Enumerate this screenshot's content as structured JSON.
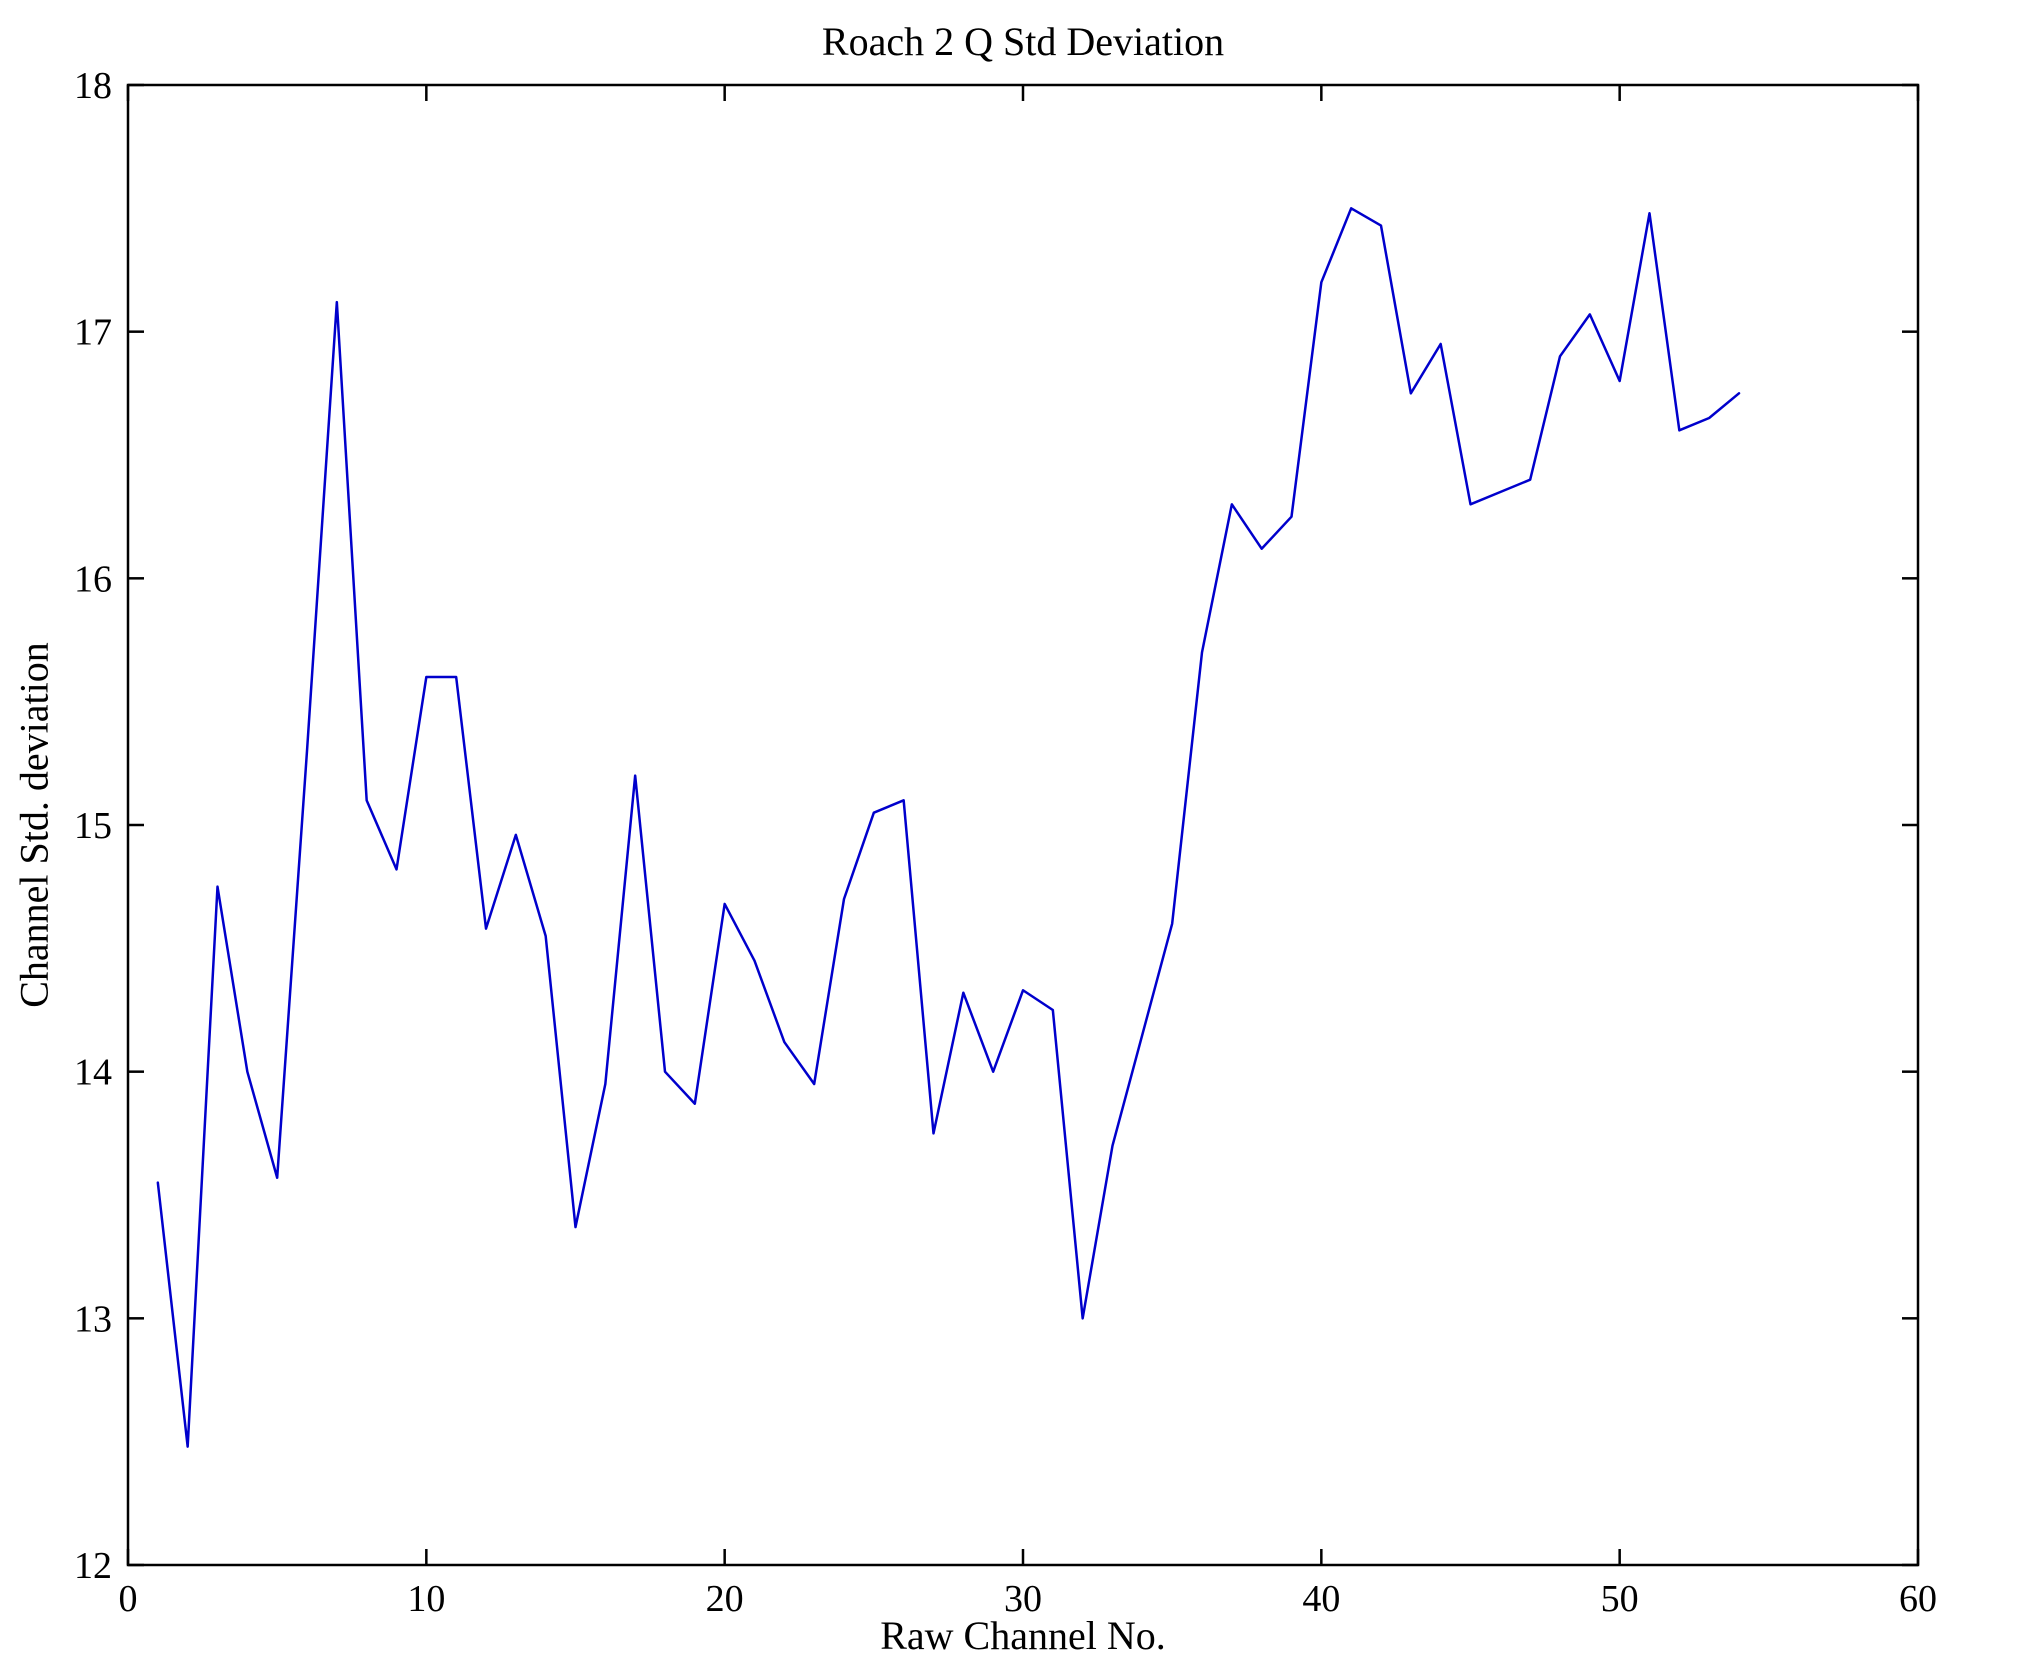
{
  "chart_data": {
    "type": "line",
    "title": "Roach 2 Q Std Deviation",
    "xlabel": "Raw Channel No.",
    "ylabel": "Channel Std. deviation",
    "xlim": [
      0,
      60
    ],
    "ylim": [
      12,
      18
    ],
    "xticks": [
      0,
      10,
      20,
      30,
      40,
      50,
      60
    ],
    "yticks": [
      12,
      13,
      14,
      15,
      16,
      17,
      18
    ],
    "grid": false,
    "legend": null,
    "line_color": "#0000cc",
    "axis_color": "#000000",
    "x": [
      1,
      2,
      3,
      4,
      5,
      6,
      7,
      8,
      9,
      10,
      11,
      12,
      13,
      14,
      15,
      16,
      17,
      18,
      19,
      20,
      21,
      22,
      23,
      24,
      25,
      26,
      27,
      28,
      29,
      30,
      31,
      32,
      33,
      34,
      35,
      36,
      37,
      38,
      39,
      40,
      41,
      42,
      43,
      44,
      45,
      46,
      47,
      48,
      49,
      50,
      51,
      52,
      53,
      54
    ],
    "y": [
      13.55,
      12.48,
      14.75,
      14.0,
      13.57,
      15.3,
      17.12,
      15.1,
      14.82,
      15.6,
      15.6,
      14.58,
      14.96,
      14.55,
      13.37,
      13.95,
      15.2,
      14.0,
      13.87,
      14.68,
      14.45,
      14.12,
      13.95,
      14.7,
      15.05,
      15.1,
      13.75,
      14.32,
      14.0,
      14.33,
      14.25,
      13.0,
      13.7,
      14.15,
      14.6,
      15.7,
      16.3,
      16.12,
      16.25,
      17.2,
      17.5,
      17.43,
      16.75,
      16.95,
      16.3,
      16.35,
      16.4,
      16.9,
      17.07,
      16.8,
      17.48,
      16.6,
      16.65,
      16.75
    ]
  }
}
